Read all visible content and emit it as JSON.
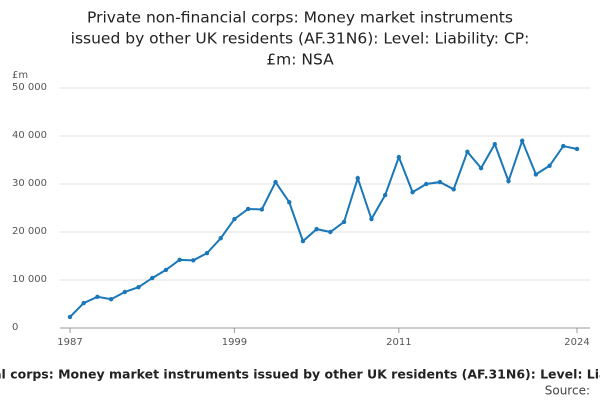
{
  "chart_data": {
    "type": "line",
    "title_lines": [
      "Private non-financial corps: Money market instruments",
      "issued by other UK residents (AF.31N6): Level: Liability: CP:",
      "£m: NSA"
    ],
    "title": "Private non-financial corps: Money market instruments issued by other UK residents (AF.31N6): Level: Liability: CP: £m: NSA",
    "y_unit": "£m",
    "source": "Source:",
    "x": [
      1987,
      1988,
      1989,
      1990,
      1991,
      1992,
      1993,
      1994,
      1995,
      1996,
      1997,
      1998,
      1999,
      2000,
      2001,
      2002,
      2003,
      2004,
      2005,
      2006,
      2007,
      2008,
      2009,
      2010,
      2011,
      2012,
      2013,
      2014,
      2015,
      2016,
      2017,
      2018,
      2019,
      2020,
      2021,
      2022,
      2023,
      2024
    ],
    "series": [
      {
        "color": "#1a77b8",
        "values": [
          2300,
          5200,
          6500,
          6000,
          7500,
          8500,
          10400,
          12100,
          14200,
          14100,
          15600,
          18700,
          22700,
          24800,
          24700,
          30400,
          26200,
          18100,
          20600,
          20000,
          22100,
          31200,
          22700,
          27700,
          35600,
          28300,
          30000,
          30400,
          28900,
          36700,
          33300,
          38300,
          30600,
          39000,
          32000,
          33800,
          37900,
          37300
        ]
      }
    ],
    "xlim": [
      1987,
      2024
    ],
    "xticks": [
      1987,
      1999,
      2011,
      2024
    ],
    "ylim": [
      0,
      50000
    ],
    "yticks": [
      0,
      {
        "value": 10000,
        "label": "10 000"
      },
      {
        "value": 20000,
        "label": "20 000"
      },
      {
        "value": 30000,
        "label": "30 000"
      },
      {
        "value": 40000,
        "label": "40 000"
      },
      {
        "value": 50000,
        "label": "50 000"
      }
    ],
    "grid": true
  }
}
